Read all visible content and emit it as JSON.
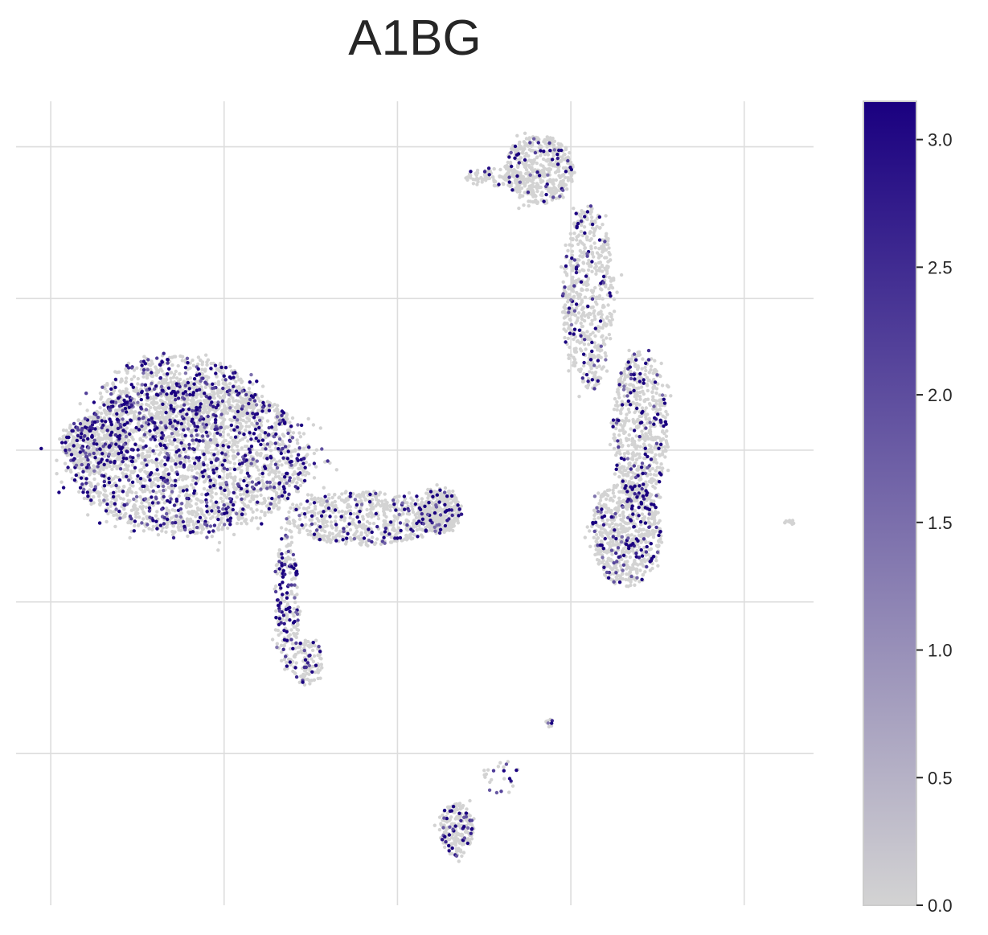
{
  "chart_data": {
    "type": "scatter",
    "title": "A1BG",
    "xlabel": "",
    "ylabel": "",
    "grid": true,
    "xlim": [
      -1,
      22
    ],
    "ylim": [
      -1,
      9.6
    ],
    "x_gridlines": [
      0,
      5,
      10,
      15,
      20
    ],
    "y_gridlines": [
      1,
      3,
      5,
      7,
      9
    ],
    "colorbar": {
      "min": 0.0,
      "max": 3.15,
      "ticks": [
        0.0,
        0.5,
        1.0,
        1.5,
        2.0,
        2.5,
        3.0
      ],
      "tick_labels": [
        "0.0",
        "0.5",
        "1.0",
        "1.5",
        "2.0",
        "2.5",
        "3.0"
      ],
      "low_color": "#d3d3d3",
      "high_color": "#1a0080"
    },
    "point_color_base": "#d3d3d3",
    "cell_clusters": [
      {
        "region": "main-body",
        "cx": 4.0,
        "cy": 4.9,
        "rx": 3.5,
        "ry": 1.0,
        "count": 2600,
        "high_fraction": 0.22
      },
      {
        "region": "main-left-lobe",
        "cx": 1.3,
        "cy": 5.1,
        "rx": 1.0,
        "ry": 0.35,
        "count": 350,
        "high_fraction": 0.18
      },
      {
        "region": "main-upper",
        "cx": 3.6,
        "cy": 5.7,
        "rx": 2.2,
        "ry": 0.55,
        "count": 700,
        "high_fraction": 0.22
      },
      {
        "region": "bridge",
        "cx": 9.0,
        "cy": 4.1,
        "rx": 2.2,
        "ry": 0.35,
        "count": 600,
        "high_fraction": 0.12
      },
      {
        "region": "bridge-right-end",
        "cx": 11.2,
        "cy": 4.2,
        "rx": 0.6,
        "ry": 0.3,
        "count": 350,
        "high_fraction": 0.12
      },
      {
        "region": "stem",
        "cx": 6.8,
        "cy": 3.0,
        "rx": 0.35,
        "ry": 0.9,
        "count": 220,
        "high_fraction": 0.3
      },
      {
        "region": "stem-tip",
        "cx": 7.4,
        "cy": 2.2,
        "rx": 0.45,
        "ry": 0.3,
        "count": 120,
        "high_fraction": 0.15
      },
      {
        "region": "right-top",
        "cx": 14.1,
        "cy": 8.7,
        "rx": 1.0,
        "ry": 0.45,
        "count": 500,
        "high_fraction": 0.08
      },
      {
        "region": "right-top-arm",
        "cx": 12.8,
        "cy": 8.6,
        "rx": 0.9,
        "ry": 0.12,
        "count": 90,
        "high_fraction": 0.05
      },
      {
        "region": "right-mid",
        "cx": 15.5,
        "cy": 7.0,
        "rx": 0.75,
        "ry": 1.2,
        "count": 600,
        "high_fraction": 0.12
      },
      {
        "region": "right-lower",
        "cx": 17.0,
        "cy": 5.3,
        "rx": 0.8,
        "ry": 1.0,
        "count": 650,
        "high_fraction": 0.16
      },
      {
        "region": "right-bottom",
        "cx": 16.6,
        "cy": 3.9,
        "rx": 1.0,
        "ry": 0.7,
        "count": 700,
        "high_fraction": 0.16
      },
      {
        "region": "small-bottom",
        "cx": 11.7,
        "cy": 0.0,
        "rx": 0.5,
        "ry": 0.35,
        "count": 220,
        "high_fraction": 0.2
      },
      {
        "region": "small-strand",
        "cx": 13.0,
        "cy": 0.7,
        "rx": 0.55,
        "ry": 0.25,
        "count": 25,
        "high_fraction": 0.4
      },
      {
        "region": "small-dot",
        "cx": 14.4,
        "cy": 1.4,
        "rx": 0.12,
        "ry": 0.06,
        "count": 10,
        "high_fraction": 0.2
      },
      {
        "region": "far-right-dot",
        "cx": 21.3,
        "cy": 4.05,
        "rx": 0.15,
        "ry": 0.04,
        "count": 12,
        "high_fraction": 0.0
      }
    ]
  }
}
